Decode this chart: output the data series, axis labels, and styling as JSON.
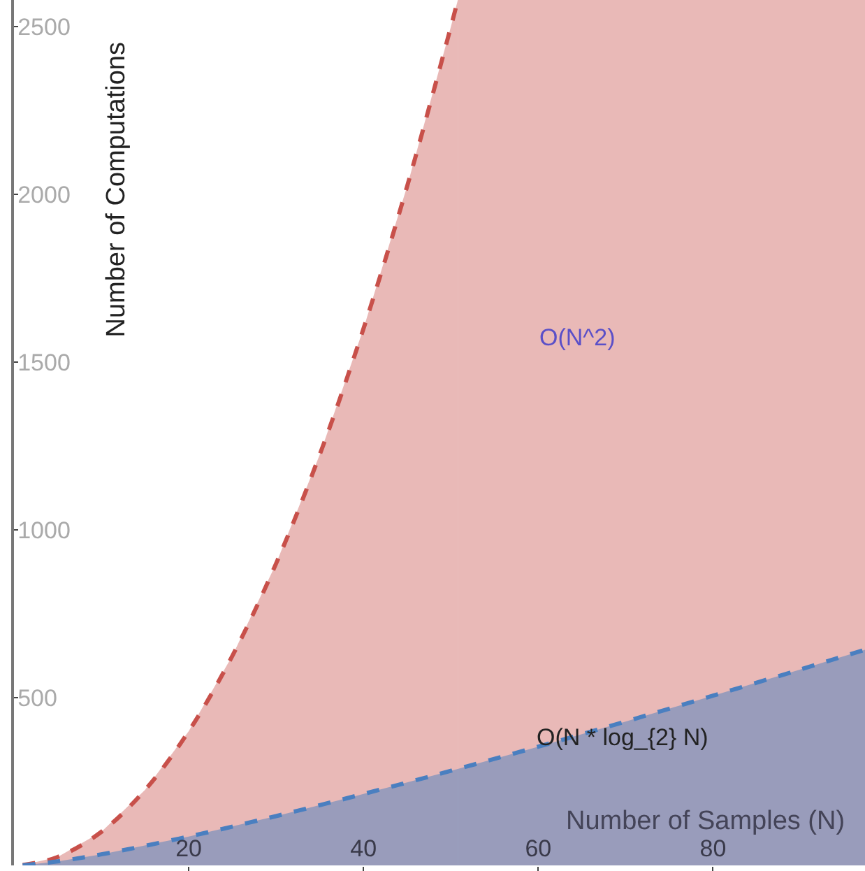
{
  "chart_data": {
    "type": "area",
    "xlabel": "Number of Samples (N)",
    "ylabel": "Number of Computations",
    "xlim": [
      0,
      97.4
    ],
    "ylim": [
      0,
      2580
    ],
    "xticks": [
      20,
      40,
      60,
      80
    ],
    "yticks": [
      500,
      1000,
      1500,
      2000,
      2500
    ],
    "grid": false,
    "line_style": "dashed",
    "series": [
      {
        "color": "#c8504a",
        "x": [
          1,
          5,
          10,
          15,
          20,
          25,
          30,
          35,
          40,
          45,
          50,
          50.8
        ],
        "values": [
          1,
          25,
          100,
          225,
          400,
          625,
          900,
          1225,
          1600,
          2025,
          2500,
          2580
        ]
      },
      {
        "color": "#4a7fc0",
        "x": [
          1,
          5,
          10,
          20,
          30,
          40,
          50,
          60,
          70,
          80,
          90,
          97.4
        ],
        "values": [
          0,
          12,
          33,
          86,
          147,
          213,
          282,
          354,
          429,
          506,
          584,
          643
        ]
      }
    ],
    "bands": [
      {
        "axis": "x",
        "from": 50.8,
        "to": 97.4,
        "color": "#c8504a"
      }
    ],
    "annotations": [
      "O(N^2)",
      "O(N * log_{2} N)"
    ]
  }
}
